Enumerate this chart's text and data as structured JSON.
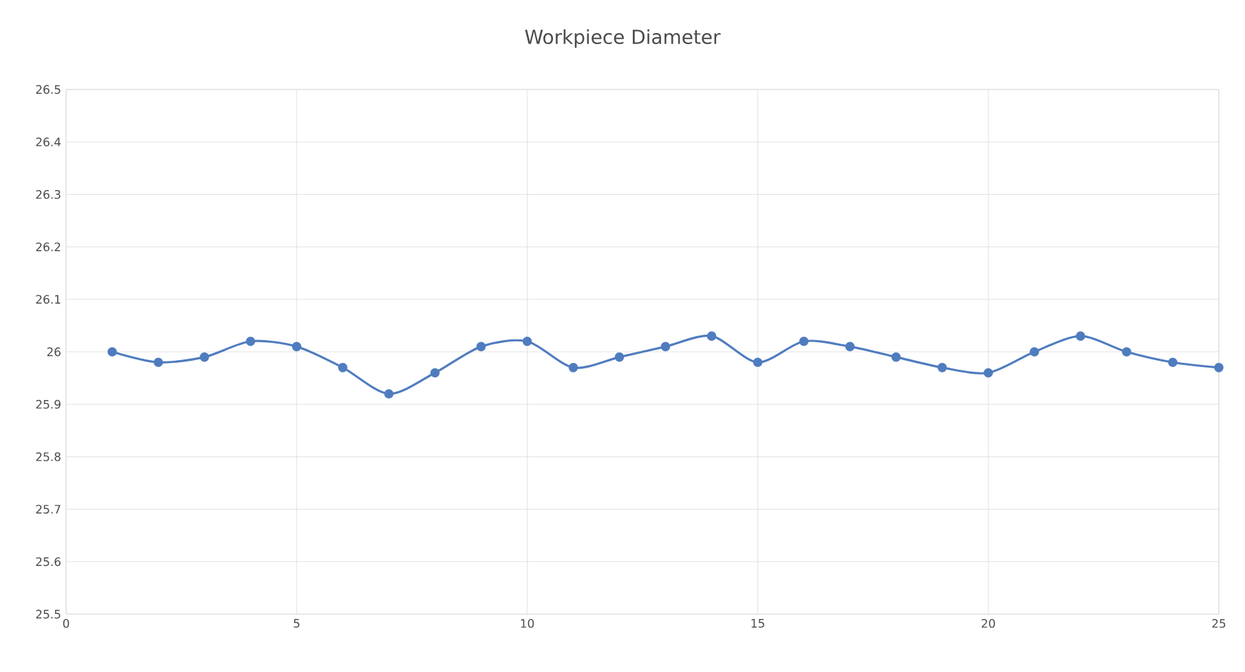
{
  "chart_data": {
    "type": "line",
    "title": "Workpiece Diameter",
    "x": [
      1,
      2,
      3,
      4,
      5,
      6,
      7,
      8,
      9,
      10,
      11,
      12,
      13,
      14,
      15,
      16,
      17,
      18,
      19,
      20,
      21,
      22,
      23,
      24,
      25
    ],
    "series": [
      {
        "color": "#4f7cbf",
        "values": [
          26.0,
          25.98,
          25.99,
          26.02,
          26.01,
          25.97,
          25.92,
          25.96,
          26.01,
          26.02,
          25.97,
          25.99,
          26.01,
          26.03,
          25.98,
          26.02,
          26.01,
          25.99,
          25.97,
          25.96,
          26.0,
          26.03,
          26.0,
          25.98,
          25.97
        ]
      }
    ],
    "xlim": [
      0,
      25
    ],
    "xticks": [
      0,
      5,
      10,
      15,
      20,
      25
    ],
    "ylim": [
      25.5,
      26.5
    ],
    "yticks": [
      25.5,
      25.6,
      25.7,
      25.8,
      25.9,
      26,
      26.1,
      26.2,
      26.3,
      26.4,
      26.5
    ],
    "grid": true,
    "marker": "circle",
    "line_style": "solid"
  }
}
